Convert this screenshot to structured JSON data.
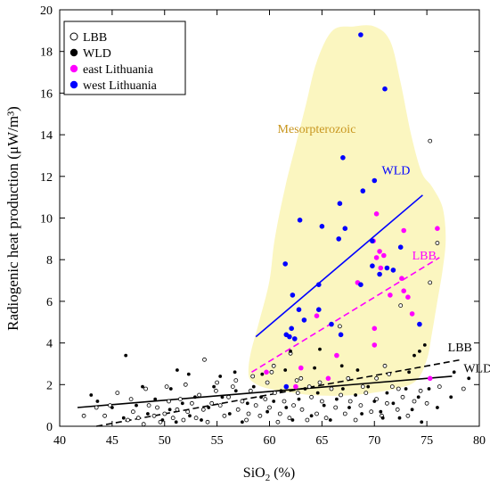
{
  "chart_data": {
    "type": "scatter",
    "title": "",
    "xlabel": "SiO",
    "xlabel_sub": "2",
    "xlabel_tail": " (%)",
    "ylabel": "Radiogenic heat production (μW/m³)",
    "xlim": [
      40,
      80
    ],
    "ylim": [
      0,
      20
    ],
    "x_ticks": [
      40,
      45,
      50,
      55,
      60,
      65,
      70,
      75,
      80
    ],
    "y_ticks": [
      0,
      2,
      4,
      6,
      8,
      10,
      12,
      14,
      16,
      18,
      20
    ],
    "grid": false,
    "legend_position": "top-left",
    "legend": [
      {
        "label": "LBB",
        "marker": "open-circle",
        "color": "#000000"
      },
      {
        "label": "WLD",
        "marker": "filled-circle",
        "color": "#000000"
      },
      {
        "label": "east Lithuania",
        "marker": "filled-circle",
        "color": "#ff00ff"
      },
      {
        "label": "west Lithuania",
        "marker": "filled-circle",
        "color": "#0000ff"
      }
    ],
    "region": {
      "label": "Mesorpterozoic",
      "color": "#fbf6c0",
      "label_color": "#c8961e",
      "label_at": [
        64.5,
        14.1
      ],
      "outline": [
        [
          58,
          2.5
        ],
        [
          58.2,
          3.5
        ],
        [
          59,
          5
        ],
        [
          60,
          7
        ],
        [
          60.5,
          9
        ],
        [
          61.5,
          11.5
        ],
        [
          62.5,
          13.5
        ],
        [
          63.5,
          15.5
        ],
        [
          64.5,
          17.5
        ],
        [
          66,
          19
        ],
        [
          68,
          19.2
        ],
        [
          70,
          19.2
        ],
        [
          71.5,
          18.5
        ],
        [
          72.5,
          16.5
        ],
        [
          73.5,
          14
        ],
        [
          74.5,
          12.2
        ],
        [
          75.5,
          11.5
        ],
        [
          76.5,
          10.5
        ],
        [
          76.8,
          9
        ],
        [
          76.5,
          7.5
        ],
        [
          76,
          6
        ],
        [
          75.5,
          4.5
        ],
        [
          75,
          3.2
        ],
        [
          74,
          2.2
        ],
        [
          72,
          1.8
        ],
        [
          68,
          1.5
        ],
        [
          64,
          1.5
        ],
        [
          60,
          1.8
        ],
        [
          58.5,
          2.1
        ]
      ]
    },
    "series": [
      {
        "name": "west Lithuania",
        "color": "#0000ff",
        "marker": "filled-circle",
        "points": [
          [
            68.7,
            18.8
          ],
          [
            71,
            16.2
          ],
          [
            67,
            12.9
          ],
          [
            70,
            11.8
          ],
          [
            68.9,
            11.3
          ],
          [
            62.9,
            9.9
          ],
          [
            66.7,
            10.7
          ],
          [
            67.2,
            9.5
          ],
          [
            65,
            9.6
          ],
          [
            66.6,
            9
          ],
          [
            69.8,
            8.9
          ],
          [
            61.5,
            7.8
          ],
          [
            64.7,
            6.8
          ],
          [
            69.8,
            7.7
          ],
          [
            71.2,
            7.6
          ],
          [
            71.8,
            7.5
          ],
          [
            72.5,
            8.6
          ],
          [
            70.5,
            7.3
          ],
          [
            62.2,
            6.3
          ],
          [
            68.7,
            6.8
          ],
          [
            64.7,
            5.6
          ],
          [
            62.8,
            5.6
          ],
          [
            63.3,
            5.1
          ],
          [
            61.6,
            4.4
          ],
          [
            61.9,
            4.3
          ],
          [
            62.1,
            4.7
          ],
          [
            74.3,
            4.9
          ],
          [
            66.8,
            4.4
          ],
          [
            62.4,
            4.2
          ],
          [
            65.9,
            4.9
          ],
          [
            61.6,
            1.9
          ]
        ]
      },
      {
        "name": "east Lithuania",
        "color": "#ff00ff",
        "marker": "filled-circle",
        "points": [
          [
            70.2,
            10.2
          ],
          [
            76,
            9.5
          ],
          [
            72.8,
            9.4
          ],
          [
            69.9,
            8.9
          ],
          [
            70.5,
            8.4
          ],
          [
            70.2,
            8.1
          ],
          [
            70.9,
            8.2
          ],
          [
            70.6,
            7.6
          ],
          [
            72.6,
            7.1
          ],
          [
            71.5,
            6.3
          ],
          [
            72.8,
            6.5
          ],
          [
            73.2,
            6.2
          ],
          [
            68.4,
            6.9
          ],
          [
            64.5,
            5.3
          ],
          [
            59.7,
            2.6
          ],
          [
            63,
            2.8
          ],
          [
            70,
            4.7
          ],
          [
            75.3,
            2.3
          ],
          [
            70,
            3.9
          ],
          [
            73.6,
            5.4
          ],
          [
            66.4,
            3.4
          ],
          [
            62.5,
            1.9
          ],
          [
            65.6,
            2.3
          ]
        ]
      },
      {
        "name": "LBB",
        "color": "#000000",
        "marker": "open-circle",
        "points": [
          [
            75.3,
            13.7
          ],
          [
            76,
            8.8
          ],
          [
            72.5,
            5.8
          ],
          [
            75.3,
            6.9
          ],
          [
            66.7,
            4.8
          ],
          [
            62,
            3.5
          ],
          [
            53.8,
            3.2
          ],
          [
            58.4,
            2.4
          ],
          [
            60.2,
            2.6
          ],
          [
            60.4,
            2.9
          ],
          [
            63,
            2.3
          ],
          [
            68.9,
            1.9
          ],
          [
            70.2,
            2.3
          ],
          [
            71,
            2.9
          ],
          [
            71.4,
            2.5
          ],
          [
            72.3,
            1.8
          ],
          [
            76.2,
            1.9
          ],
          [
            78.5,
            1.8
          ],
          [
            42.3,
            0.5
          ],
          [
            43.5,
            0.9
          ],
          [
            44.3,
            0.5
          ],
          [
            44.8,
            1
          ],
          [
            46.5,
            0.3
          ],
          [
            47,
            0.7
          ],
          [
            47.5,
            0.4
          ],
          [
            48,
            0.1
          ],
          [
            48.5,
            1
          ],
          [
            49,
            0.5
          ],
          [
            49.3,
            0.9
          ],
          [
            49.6,
            0.2
          ],
          [
            50,
            0.6
          ],
          [
            50.4,
            1.2
          ],
          [
            50.8,
            0.4
          ],
          [
            51.2,
            0.8
          ],
          [
            51.5,
            1.3
          ],
          [
            51.8,
            0.3
          ],
          [
            52.2,
            0.7
          ],
          [
            52.6,
            1.1
          ],
          [
            53,
            0.4
          ],
          [
            53.3,
            1.5
          ],
          [
            53.7,
            0.8
          ],
          [
            54.1,
            0.2
          ],
          [
            54.5,
            1.1
          ],
          [
            54.9,
            1.7
          ],
          [
            55.3,
            1
          ],
          [
            55.7,
            0.5
          ],
          [
            56.1,
            1.4
          ],
          [
            56.5,
            1.9
          ],
          [
            57,
            0.8
          ],
          [
            57.4,
            1.2
          ],
          [
            57.8,
            0.3
          ],
          [
            58.2,
            1.7
          ],
          [
            58.7,
            1
          ],
          [
            59.1,
            0.5
          ],
          [
            59.6,
            1.3
          ],
          [
            60,
            0.9
          ],
          [
            60.5,
            1.6
          ],
          [
            61,
            0.6
          ],
          [
            61.4,
            1.2
          ],
          [
            61.9,
            0.4
          ],
          [
            62.3,
            1
          ],
          [
            62.7,
            1.6
          ],
          [
            63.1,
            0.8
          ],
          [
            63.6,
            0.3
          ],
          [
            64,
            1.4
          ],
          [
            64.5,
            0.6
          ],
          [
            65,
            1.2
          ],
          [
            65.4,
            0.4
          ],
          [
            65.9,
            1.8
          ],
          [
            66.3,
            0.9
          ],
          [
            66.8,
            1.5
          ],
          [
            67.2,
            0.6
          ],
          [
            67.7,
            1.2
          ],
          [
            68.2,
            0.3
          ],
          [
            68.7,
            1
          ],
          [
            69.2,
            1.6
          ],
          [
            69.7,
            0.7
          ],
          [
            70.2,
            1.3
          ],
          [
            70.7,
            0.5
          ],
          [
            71.2,
            1.1
          ],
          [
            71.7,
            1.9
          ],
          [
            72.2,
            0.8
          ],
          [
            72.7,
            1.4
          ],
          [
            73.2,
            0.5
          ],
          [
            73.8,
            1.2
          ],
          [
            74.4,
            1.7
          ],
          [
            75,
            1.1
          ],
          [
            45.5,
            1.6
          ],
          [
            46.8,
            1.3
          ],
          [
            48.2,
            1.8
          ],
          [
            50.2,
            1.9
          ],
          [
            52,
            2
          ],
          [
            55,
            2.1
          ],
          [
            56.8,
            2.2
          ],
          [
            59.8,
            2.1
          ],
          [
            62.6,
            2.2
          ],
          [
            64.8,
            2.1
          ],
          [
            67.5,
            2.3
          ],
          [
            58,
            0.6
          ],
          [
            60.8,
            0.2
          ],
          [
            63.8,
            1.9
          ]
        ]
      },
      {
        "name": "WLD",
        "color": "#000000",
        "marker": "filled-circle",
        "points": [
          [
            46.3,
            3.4
          ],
          [
            51.2,
            2.7
          ],
          [
            59.3,
            2.5
          ],
          [
            62,
            3.6
          ],
          [
            64.8,
            3.7
          ],
          [
            74.3,
            3.6
          ],
          [
            74.8,
            3.9
          ],
          [
            73.8,
            3.4
          ],
          [
            43,
            1.5
          ],
          [
            43.6,
            1.2
          ],
          [
            47.9,
            1.9
          ],
          [
            50.6,
            1.8
          ],
          [
            52.3,
            2.5
          ],
          [
            55.3,
            2.4
          ],
          [
            56.7,
            2.6
          ],
          [
            61.5,
            2.7
          ],
          [
            64.3,
            2.8
          ],
          [
            66.9,
            2.9
          ],
          [
            68.4,
            2.7
          ],
          [
            73.3,
            2.6
          ],
          [
            77.6,
            2.6
          ],
          [
            45,
            0.9
          ],
          [
            46.1,
            0.4
          ],
          [
            47.3,
            1
          ],
          [
            48.4,
            0.6
          ],
          [
            49.1,
            1.3
          ],
          [
            49.8,
            0.3
          ],
          [
            50.5,
            0.8
          ],
          [
            51.1,
            0.2
          ],
          [
            51.7,
            1.1
          ],
          [
            52.4,
            0.5
          ],
          [
            52.9,
            1.4
          ],
          [
            53.5,
            0.3
          ],
          [
            54.2,
            0.9
          ],
          [
            54.7,
            1.9
          ],
          [
            55.5,
            1.4
          ],
          [
            56.2,
            0.6
          ],
          [
            56.8,
            1.7
          ],
          [
            57.4,
            0.2
          ],
          [
            57.9,
            1.1
          ],
          [
            58.5,
            1.9
          ],
          [
            59.2,
            1.4
          ],
          [
            59.8,
            0.7
          ],
          [
            60.4,
            1.2
          ],
          [
            61.1,
            1.7
          ],
          [
            61.6,
            0.9
          ],
          [
            62.2,
            0.3
          ],
          [
            62.8,
            1.3
          ],
          [
            63.4,
            1.8
          ],
          [
            64,
            0.5
          ],
          [
            64.6,
            1.6
          ],
          [
            65.2,
            1
          ],
          [
            65.8,
            0.3
          ],
          [
            66.4,
            1.3
          ],
          [
            67,
            1.8
          ],
          [
            67.6,
            0.9
          ],
          [
            68.2,
            1.5
          ],
          [
            68.8,
            0.6
          ],
          [
            69.4,
            1.9
          ],
          [
            70,
            1.2
          ],
          [
            70.6,
            0.7
          ],
          [
            71.2,
            1.6
          ],
          [
            71.8,
            1.1
          ],
          [
            72.4,
            0.4
          ],
          [
            73,
            1.8
          ],
          [
            73.6,
            0.8
          ],
          [
            74.2,
            1.4
          ],
          [
            75.2,
            1.8
          ],
          [
            76,
            0.9
          ],
          [
            77.3,
            1.4
          ],
          [
            79,
            2.3
          ],
          [
            70.8,
            0.4
          ],
          [
            74.5,
            0.2
          ]
        ]
      }
    ],
    "fit_lines": [
      {
        "label": "WLD",
        "color": "#0000ff",
        "style": "solid",
        "from": [
          58.7,
          4.3
        ],
        "to": [
          74.6,
          11.1
        ],
        "label_at": [
          70.7,
          12.1
        ]
      },
      {
        "label": "LBB",
        "color": "#ff00ff",
        "style": "dashed",
        "from": [
          58.3,
          2.6
        ],
        "to": [
          76.2,
          8.1
        ],
        "label_at": [
          73.6,
          8.0
        ]
      },
      {
        "label": "LBB",
        "color": "#000000",
        "style": "dashed",
        "from": [
          43.5,
          0
        ],
        "to": [
          78.3,
          3.2
        ],
        "label_at": [
          77,
          3.6
        ]
      },
      {
        "label": "WLD",
        "color": "#000000",
        "style": "solid",
        "from": [
          41.7,
          0.9
        ],
        "to": [
          77.4,
          2.4
        ],
        "label_at": [
          78.5,
          2.6
        ]
      }
    ]
  }
}
